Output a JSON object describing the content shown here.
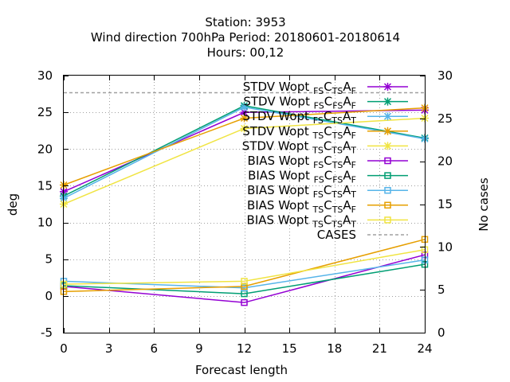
{
  "chart_data": {
    "type": "line",
    "title": {
      "line1": "Station:     3953",
      "line2": "Wind direction 700hPa   Period: 20180601-20180614",
      "line3": "Hours:  00,12"
    },
    "xlabel": "Forecast length",
    "ylabel": "deg",
    "y2label": "No cases",
    "x_ticks": [
      0,
      3,
      6,
      9,
      12,
      15,
      18,
      21,
      24
    ],
    "y_ticks": [
      -5,
      0,
      5,
      10,
      15,
      20,
      25,
      30
    ],
    "y2_ticks": [
      0,
      5,
      10,
      15,
      20,
      25,
      30
    ],
    "xlim": [
      0,
      24
    ],
    "ylim": [
      -5,
      30
    ],
    "y2lim": [
      0,
      30
    ],
    "grid": true,
    "legend_position": "top-right",
    "x": [
      0,
      12,
      24
    ],
    "series": [
      {
        "label_main": "STDV Wopt",
        "subs": [
          "FS",
          "C",
          "TS",
          "A",
          "F"
        ],
        "kind": "stdv",
        "color": "#9400d3",
        "values": [
          14.2,
          25.0,
          25.3
        ],
        "axis": "y"
      },
      {
        "label_main": "STDV Wopt",
        "subs": [
          "FS",
          "C",
          "FS",
          "A",
          "F"
        ],
        "kind": "stdv",
        "color": "#009e73",
        "values": [
          13.6,
          25.9,
          21.5
        ],
        "axis": "y"
      },
      {
        "label_main": "STDV Wopt",
        "subs": [
          "FS",
          "C",
          "TS",
          "A",
          "T"
        ],
        "kind": "stdv",
        "color": "#56b4e9",
        "values": [
          13.3,
          25.7,
          21.4
        ],
        "axis": "y"
      },
      {
        "label_main": "STDV Wopt",
        "subs": [
          "TS",
          "C",
          "TS",
          "A",
          "F"
        ],
        "kind": "stdv",
        "color": "#e69f00",
        "values": [
          15.1,
          24.2,
          25.6
        ],
        "axis": "y"
      },
      {
        "label_main": "STDV Wopt",
        "subs": [
          "TS",
          "C",
          "TS",
          "A",
          "T"
        ],
        "kind": "stdv",
        "color": "#f0e442",
        "values": [
          12.5,
          22.8,
          24.2
        ],
        "axis": "y"
      },
      {
        "label_main": "BIAS Wopt",
        "subs": [
          "FS",
          "C",
          "TS",
          "A",
          "F"
        ],
        "kind": "bias",
        "color": "#9400d3",
        "values": [
          1.3,
          -0.9,
          5.6
        ],
        "axis": "y"
      },
      {
        "label_main": "BIAS Wopt",
        "subs": [
          "FS",
          "C",
          "FS",
          "A",
          "F"
        ],
        "kind": "bias",
        "color": "#009e73",
        "values": [
          1.4,
          0.3,
          4.3
        ],
        "axis": "y"
      },
      {
        "label_main": "BIAS Wopt",
        "subs": [
          "FS",
          "C",
          "TS",
          "A",
          "T"
        ],
        "kind": "bias",
        "color": "#56b4e9",
        "values": [
          2.0,
          1.1,
          4.9
        ],
        "axis": "y"
      },
      {
        "label_main": "BIAS Wopt",
        "subs": [
          "TS",
          "C",
          "TS",
          "A",
          "F"
        ],
        "kind": "bias",
        "color": "#e69f00",
        "values": [
          0.6,
          1.3,
          7.7
        ],
        "axis": "y"
      },
      {
        "label_main": "BIAS Wopt",
        "subs": [
          "TS",
          "C",
          "TS",
          "A",
          "T"
        ],
        "kind": "bias",
        "color": "#f0e442",
        "values": [
          1.6,
          2.0,
          6.3
        ],
        "axis": "y"
      }
    ],
    "cases": {
      "label": "CASES",
      "color": "#a0a0a0",
      "values": [
        28,
        28,
        28
      ],
      "axis": "y2"
    }
  }
}
